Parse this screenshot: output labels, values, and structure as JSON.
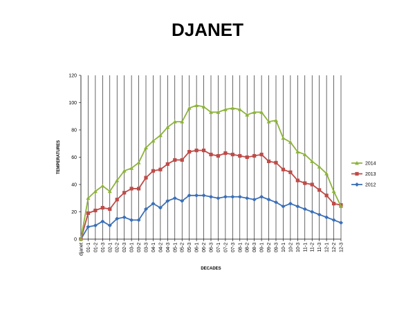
{
  "chart_data": {
    "type": "line",
    "title": "DJANET",
    "xlabel": "DECADES",
    "ylabel": "TEMPERATURES",
    "ylim": [
      0,
      120
    ],
    "yticks": [
      0,
      20,
      40,
      60,
      80,
      100,
      120
    ],
    "grid": "vertical",
    "legend": "right",
    "categories": [
      "djanet",
      "01-1",
      "01-2",
      "01-3",
      "02-1",
      "02-2",
      "02-3",
      "03-1",
      "03-2",
      "03-3",
      "04-1",
      "04-2",
      "04-3",
      "05-1",
      "05-2",
      "05-3",
      "06-1",
      "06-2",
      "06-3",
      "07-1",
      "07-2",
      "07-3",
      "08-1",
      "08-2",
      "08-3",
      "09-1",
      "09-2",
      "09-3",
      "10-1",
      "10-2",
      "10-3",
      "11-1",
      "11-2",
      "11-3",
      "12-1",
      "12-2",
      "12-3"
    ],
    "series": [
      {
        "name": "2014",
        "color": "#8db33b",
        "marker": "triangle",
        "values": [
          0,
          30,
          35,
          39,
          35,
          43,
          50,
          52,
          56,
          67,
          72,
          76,
          82,
          86,
          86,
          96,
          98,
          97,
          93,
          93,
          95,
          96,
          95,
          91,
          93,
          93,
          86,
          87,
          74,
          71,
          64,
          62,
          57,
          53,
          48,
          35,
          24
        ]
      },
      {
        "name": "2013",
        "color": "#be4b48",
        "marker": "square",
        "values": [
          0,
          19,
          21,
          23,
          22,
          29,
          34,
          37,
          37,
          45,
          50,
          51,
          55,
          58,
          58,
          64,
          65,
          65,
          62,
          61,
          63,
          62,
          61,
          60,
          61,
          62,
          57,
          56,
          51,
          49,
          43,
          41,
          40,
          36,
          32,
          26,
          25
        ]
      },
      {
        "name": "2012",
        "color": "#3b6fb6",
        "marker": "diamond",
        "values": [
          0,
          9,
          10,
          13,
          10,
          15,
          16,
          14,
          14,
          22,
          26,
          23,
          28,
          30,
          28,
          32,
          32,
          32,
          31,
          30,
          31,
          31,
          31,
          30,
          29,
          31,
          29,
          27,
          24,
          26,
          24,
          22,
          20,
          18,
          16,
          14,
          12
        ]
      }
    ]
  }
}
